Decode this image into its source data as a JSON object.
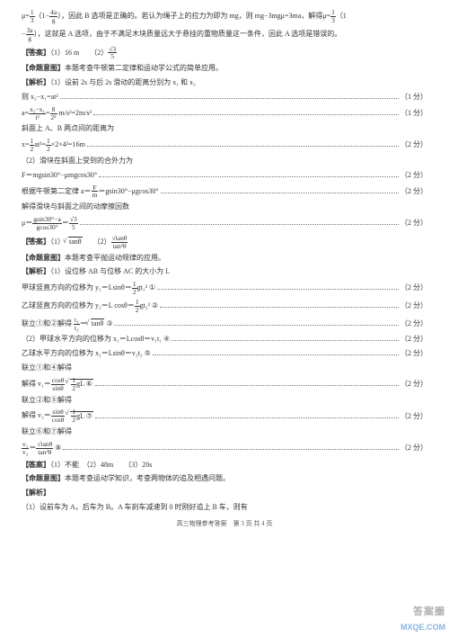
{
  "intro": {
    "line1_a": "μ=",
    "line1_b": "（1−",
    "line1_c": "），因此 B 选项是正确的。若认为绳子上的拉力为即为 mg，则 mg−3mgμ=3ma，解得μ=",
    "line1_d": "（1",
    "frac1_num": "1",
    "frac1_den": "3",
    "frac2_num": "4a",
    "frac2_den": "g",
    "frac3_num": "1",
    "frac3_den": "3",
    "line2_a": "−",
    "line2_b": "），这就是 A 选项，由于不满足木块质量远大于悬挂的重物质量这一条件，因此 A 选项是错误的。",
    "frac4_num": "3a",
    "frac4_den": "g"
  },
  "q13": {
    "num": "13．",
    "ans_label": "【答案】",
    "ans_a": "（1）16 m　　（2）",
    "ans_frac_num": "√3",
    "ans_frac_den": "5",
    "intent_label": "【命题意图】",
    "intent": "本题考查牛顿第二定律和运动学公式的简单应用。",
    "sol_label": "【解析】",
    "sol1": "（1）设前 2s 与后 2s 滑动的距离分别为 x₁ 和 x₂",
    "l1": "则 x₂−x₁=at²",
    "l2_a": "a=",
    "l2_frac_num": "x₂−x₁",
    "l2_frac_den": "t²",
    "l2_b": "=",
    "l2_frac2_num": "8",
    "l2_frac2_den": "2²",
    "l2_c": " m/s²=2m/s²",
    "l3": "斜面上 A、B 两点间的距离为",
    "l4_a": "x=",
    "l4_frac_num": "1",
    "l4_frac_den": "2",
    "l4_b": "at²=",
    "l4_frac2_num": "1",
    "l4_frac2_den": "2",
    "l4_c": "×2×4²=16m",
    "l5": "（2）滑块在斜面上受到的合外力为",
    "l6": "F＝mgsin30°−μmgcos30°",
    "l7_a": "根据牛顿第二定律 a＝",
    "l7_frac_num": "F",
    "l7_frac_den": "m",
    "l7_b": "＝gsin30°−μgcos30°",
    "l8": "解得滑块与斜面之间的动摩擦因数",
    "l9_a": "μ＝",
    "l9_frac_num": "gsin30°−a",
    "l9_frac_den": "gcos30°",
    "l9_b": "＝",
    "l9_frac2_num": "√3",
    "l9_frac2_den": "5",
    "pts1": "（1 分）",
    "pts2": "（2 分）"
  },
  "q14": {
    "num": "14．",
    "ans_label": "【答案】",
    "ans_a": "（1）",
    "ans_b": "　　（2）",
    "ans_f1": "√tanθ",
    "ans_f2_num": "√tanθ",
    "ans_f2_den": "tan²θ",
    "intent_label": "【命题意图】",
    "intent": "本题考查平抛运动规律的应用。",
    "sol_label": "【解析】",
    "sol1": "（1）设位移 AB 与位移 AC 的大小为 L",
    "l1_a": "甲球竖直方向的位移为 y₁＝Lsinθ＝",
    "l1_frac_num": "1",
    "l1_frac_den": "2",
    "l1_b": "gt₁² ①",
    "l2_a": "乙球竖直方向的位移为 y₂＝L cosθ＝",
    "l2_frac_num": "1",
    "l2_frac_den": "2",
    "l2_b": "gt₂² ②",
    "l3_a": "联立①和②解得 ",
    "l3_frac_num": "t₁",
    "l3_frac_den": "t₂",
    "l3_b": "＝",
    "l3_c": " ③",
    "l3_sqrt": "tanθ",
    "l4": "（2）甲球水平方向的位移为 x₁＝Lcosθ＝v₁t₁ ④",
    "l5": "乙球水平方向的位移为 x₂＝Lsinθ＝v₂t₂ ⑤",
    "l6": "联立①和④解得",
    "l7_a": "解得 v₁＝",
    "l7_frac_num": "cosθ",
    "l7_frac_den": "sinθ",
    "l7_sqrt_num": "1",
    "l7_sqrt_den": "2",
    "l7_b": "gL ⑥",
    "l8": "联立②和⑤解得",
    "l9_a": "解得 v₂＝",
    "l9_frac_num": "sinθ",
    "l9_frac_den": "cosθ",
    "l9_sqrt_num": "1",
    "l9_sqrt_den": "2",
    "l9_b": "gL ⑦",
    "l10": "联立⑥和⑦解得",
    "l11_a": "",
    "l11_frac_num": "v₁",
    "l11_frac_den": "v₂",
    "l11_b": "＝",
    "l11_f_num": "√tanθ",
    "l11_f_den": "tan²θ",
    "l11_c": " ⑧",
    "pts2": "（2 分）"
  },
  "q15": {
    "num": "15．",
    "ans_label": "【答案】",
    "ans": "（1）不能　（2）48m　　（3）20s",
    "intent_label": "【命题意图】",
    "intent": "本题考查运动学知识，考查两物体的追及相遇问题。",
    "sol_label": "【解析】",
    "sol1": "（1）设前车为 A，后车为 B。A 车刹车减速到 0 时刚好追上 B 车，则有"
  },
  "footer": "高三物理参考答案　第 3 页 共 4 页",
  "wm": {
    "brand": "答案圈",
    "url": "MXQE.COM"
  }
}
